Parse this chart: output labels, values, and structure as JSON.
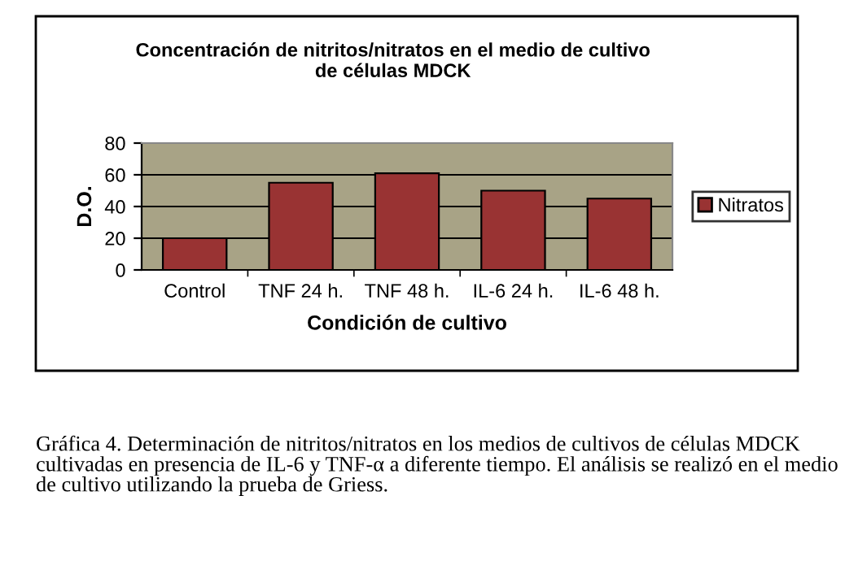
{
  "chart_data": {
    "type": "bar",
    "title": "Concentración de nitritos/nitratos en el medio de cultivo\nde células MDCK",
    "xlabel": "Condición de cultivo",
    "ylabel": "D.O.",
    "categories": [
      "Control",
      "TNF 24 h.",
      "TNF 48 h.",
      "IL-6 24 h.",
      "IL-6 48 h."
    ],
    "series": [
      {
        "name": "Nitratos",
        "color": "#993333",
        "values": [
          20,
          55,
          61,
          50,
          45
        ]
      }
    ],
    "ylim": [
      0,
      80
    ],
    "yticks": [
      0,
      20,
      40,
      60,
      80
    ],
    "grid": "y",
    "legend": "right",
    "annotations": [
      "Gráfica 4. Determinación de nitritos/nitratos en los medios de cultivos de células MDCK cultivadas en presencia de IL-6 y TNF-α a diferente tiempo. El análisis se realizó en el medio de cultivo utilizando la prueba de Griess."
    ]
  }
}
